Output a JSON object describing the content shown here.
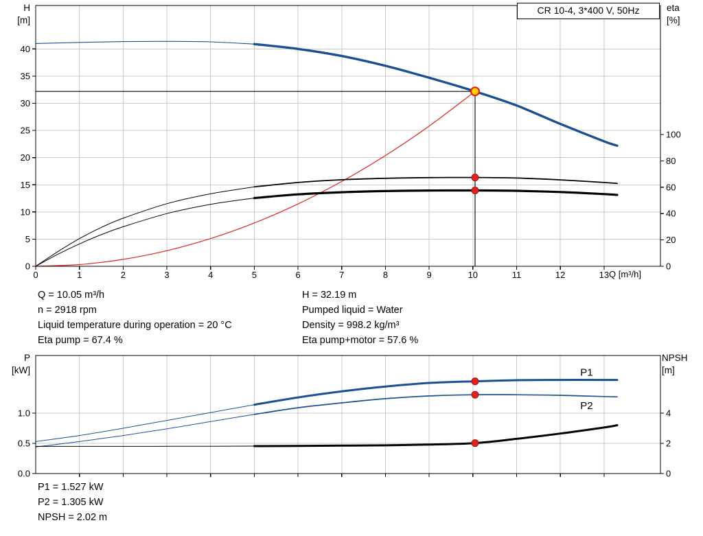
{
  "colors": {
    "blue": "#1c4f91",
    "red": "#e0241b",
    "red_dark": "#a31109",
    "black": "#000000",
    "grid": "#c9c9c9",
    "duty_fill": "#ffd400"
  },
  "annotations": {
    "top_left": [
      "Q = 10.05 m³/h",
      "n = 2918 rpm",
      "Liquid temperature during operation = 20 °C",
      "Eta pump = 67.4 %"
    ],
    "top_right": [
      "H = 32.19 m",
      "Pumped liquid = Water",
      "Density = 998.2 kg/m³",
      "Eta pump+motor = 57.6 %"
    ],
    "bottom": [
      "P1 = 1.527 kW",
      "P2 = 1.305 kW",
      "NPSH = 2.02 m"
    ]
  },
  "chart_data": [
    {
      "type": "line",
      "title": "CR 10-4, 3*400 V, 50Hz",
      "x_axis": {
        "label": "Q [m³/h]",
        "min": 0,
        "max": 14.29,
        "ticks": [
          0,
          1,
          2,
          3,
          4,
          5,
          6,
          7,
          8,
          9,
          10,
          11,
          12,
          13
        ],
        "show_labels": true
      },
      "left_axis": {
        "name": "H",
        "unit": "[m]",
        "min": 0,
        "max": 48,
        "ticks": [
          0,
          5,
          10,
          15,
          20,
          25,
          30,
          35,
          40
        ],
        "decimals": 0
      },
      "right_axis": {
        "name": "eta",
        "unit": "[%]",
        "min": 0,
        "max": 198,
        "ticks": [
          0,
          20,
          40,
          60,
          80,
          100
        ],
        "decimals": 0
      },
      "series": [
        {
          "name": "pump-head-curve",
          "axis": "left",
          "color": "blue",
          "width": 3.4,
          "width_thin": 1.1,
          "bold_from": 5,
          "points": [
            [
              0,
              41.0
            ],
            [
              1,
              41.2
            ],
            [
              2,
              41.35
            ],
            [
              3,
              41.4
            ],
            [
              4,
              41.3
            ],
            [
              5,
              40.9
            ],
            [
              6,
              40.0
            ],
            [
              7,
              38.7
            ],
            [
              8,
              36.9
            ],
            [
              9,
              34.7
            ],
            [
              10.05,
              32.19
            ],
            [
              11,
              29.6
            ],
            [
              12,
              26.2
            ],
            [
              13,
              23.0
            ],
            [
              13.3,
              22.2
            ]
          ]
        },
        {
          "name": "system-curve",
          "axis": "left",
          "color": "red",
          "width": 1.2,
          "points": [
            [
              0,
              0
            ],
            [
              1,
              0.32
            ],
            [
              2,
              1.27
            ],
            [
              3,
              2.87
            ],
            [
              4,
              5.1
            ],
            [
              5,
              7.97
            ],
            [
              6,
              11.47
            ],
            [
              7,
              15.61
            ],
            [
              8,
              20.39
            ],
            [
              9,
              25.81
            ],
            [
              10.05,
              32.19
            ]
          ]
        },
        {
          "name": "eta-pump-curve",
          "axis": "right",
          "color": "black",
          "width": 1.8,
          "width_thin": 1.0,
          "bold_from": 5,
          "points": [
            [
              0,
              0
            ],
            [
              0.5,
              11
            ],
            [
              1,
              21
            ],
            [
              1.5,
              29.5
            ],
            [
              2,
              36.5
            ],
            [
              3,
              47.5
            ],
            [
              4,
              55
            ],
            [
              5,
              60.3
            ],
            [
              6,
              63.6
            ],
            [
              7,
              65.7
            ],
            [
              8,
              66.8
            ],
            [
              9,
              67.3
            ],
            [
              10.05,
              67.4
            ],
            [
              11,
              67.0
            ],
            [
              12,
              65.6
            ],
            [
              13,
              63.6
            ],
            [
              13.3,
              62.9
            ]
          ]
        },
        {
          "name": "eta-pump-motor-curve",
          "axis": "right",
          "color": "black",
          "width": 3.2,
          "width_thin": 1.0,
          "bold_from": 5,
          "points": [
            [
              0,
              0
            ],
            [
              0.5,
              9
            ],
            [
              1,
              17
            ],
            [
              1.5,
              24
            ],
            [
              2,
              30
            ],
            [
              3,
              40
            ],
            [
              4,
              47
            ],
            [
              5,
              51.8
            ],
            [
              6,
              54.6
            ],
            [
              7,
              56.2
            ],
            [
              8,
              57.1
            ],
            [
              9,
              57.5
            ],
            [
              10.05,
              57.6
            ],
            [
              11,
              57.3
            ],
            [
              12,
              56.4
            ],
            [
              13,
              54.8
            ],
            [
              13.3,
              54.2
            ]
          ]
        }
      ],
      "duty_lines": [
        {
          "orient": "h",
          "v": 32.19,
          "q1": 0,
          "q2": 10.05
        },
        {
          "orient": "v",
          "q": 10.05,
          "v1": 0,
          "v2": 32.19
        }
      ],
      "markers": [
        {
          "type": "duty",
          "q": 10.05,
          "v": 32.19,
          "axis": "left"
        },
        {
          "type": "dot",
          "q": 10.05,
          "v": 67.4,
          "axis": "right"
        },
        {
          "type": "dot",
          "q": 10.05,
          "v": 57.6,
          "axis": "right"
        }
      ],
      "duty_point": {
        "Q_m3h": 10.05,
        "H_m": 32.19,
        "eta_pump_pct": 67.4,
        "eta_pump_motor_pct": 57.6,
        "speed_rpm": 2918
      }
    },
    {
      "type": "line",
      "x_axis": {
        "min": 0,
        "max": 14.29,
        "ticks": [
          1,
          2,
          3,
          4,
          5,
          6,
          7,
          8,
          9,
          10,
          11,
          12,
          13
        ],
        "show_labels": false
      },
      "left_axis": {
        "name": "P",
        "unit": "[kW]",
        "min": 0,
        "max": 1.9545,
        "ticks": [
          0,
          0.5,
          1
        ],
        "decimals": 1
      },
      "right_axis": {
        "name": "NPSH",
        "unit": "[m]",
        "min": 0,
        "max": 7.82,
        "ticks": [
          0,
          2,
          4
        ],
        "decimals": 0
      },
      "series": [
        {
          "name": "p1-power-curve",
          "axis": "left",
          "color": "blue",
          "width": 3.0,
          "width_thin": 1.0,
          "bold_from": 5,
          "label": {
            "text": "P1",
            "q": 12.6,
            "v": 1.62
          },
          "points": [
            [
              0,
              0.53
            ],
            [
              1,
              0.63
            ],
            [
              2,
              0.75
            ],
            [
              3,
              0.88
            ],
            [
              4,
              1.01
            ],
            [
              5,
              1.14
            ],
            [
              6,
              1.26
            ],
            [
              7,
              1.36
            ],
            [
              8,
              1.44
            ],
            [
              9,
              1.5
            ],
            [
              10.05,
              1.527
            ],
            [
              11,
              1.545
            ],
            [
              12,
              1.55
            ],
            [
              13,
              1.55
            ],
            [
              13.3,
              1.55
            ]
          ]
        },
        {
          "name": "p2-power-curve",
          "axis": "left",
          "color": "blue",
          "width": 1.7,
          "width_thin": 1.0,
          "bold_from": 5,
          "label": {
            "text": "P2",
            "q": 12.6,
            "v": 1.07
          },
          "points": [
            [
              0,
              0.44
            ],
            [
              1,
              0.53
            ],
            [
              2,
              0.63
            ],
            [
              3,
              0.74
            ],
            [
              4,
              0.86
            ],
            [
              5,
              0.98
            ],
            [
              6,
              1.09
            ],
            [
              7,
              1.17
            ],
            [
              8,
              1.24
            ],
            [
              9,
              1.285
            ],
            [
              10.05,
              1.305
            ],
            [
              11,
              1.305
            ],
            [
              12,
              1.295
            ],
            [
              13,
              1.275
            ],
            [
              13.3,
              1.27
            ]
          ]
        },
        {
          "name": "npsh-curve",
          "axis": "right",
          "color": "black",
          "width": 3.0,
          "width_thin": 1.0,
          "bold_from": 5,
          "points": [
            [
              0,
              1.8
            ],
            [
              2,
              1.8
            ],
            [
              4,
              1.81
            ],
            [
              5,
              1.82
            ],
            [
              6,
              1.83
            ],
            [
              7,
              1.85
            ],
            [
              8,
              1.87
            ],
            [
              9,
              1.92
            ],
            [
              10.05,
              2.02
            ],
            [
              11,
              2.3
            ],
            [
              12,
              2.65
            ],
            [
              13,
              3.05
            ],
            [
              13.3,
              3.2
            ]
          ]
        }
      ],
      "markers": [
        {
          "type": "dot",
          "q": 10.05,
          "v": 1.527,
          "axis": "left"
        },
        {
          "type": "dot",
          "q": 10.05,
          "v": 1.305,
          "axis": "left"
        },
        {
          "type": "dot",
          "q": 10.05,
          "v": 2.02,
          "axis": "right"
        }
      ],
      "duty_point": {
        "P1_kW": 1.527,
        "P2_kW": 1.305,
        "NPSH_m": 2.02
      }
    }
  ]
}
